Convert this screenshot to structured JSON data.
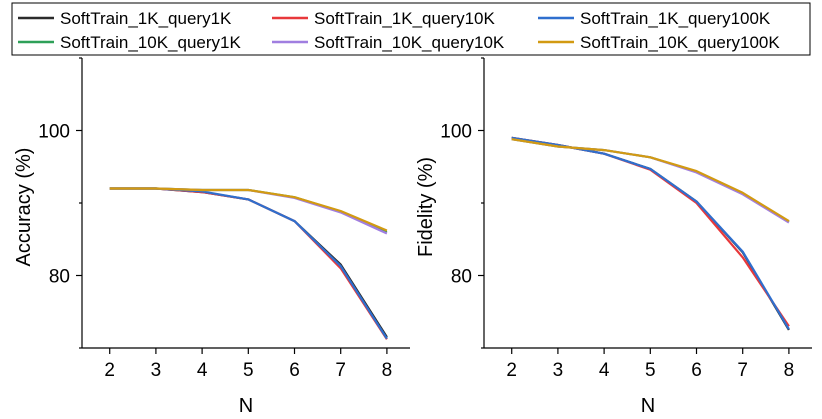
{
  "chart_data": [
    {
      "type": "line",
      "title": "",
      "xlabel": "N",
      "ylabel": "Accuracy (%)",
      "x": [
        2,
        3,
        4,
        5,
        6,
        7,
        8
      ],
      "xlim": [
        1.4,
        8.5
      ],
      "ylim": [
        70,
        110
      ],
      "xticks": [
        "2",
        "3",
        "4",
        "5",
        "6",
        "7",
        "8"
      ],
      "yticks": [
        "80",
        "100"
      ],
      "grid": false,
      "series": [
        {
          "name": "SoftTrain_1K_query1K",
          "values": [
            92.0,
            92.0,
            91.5,
            90.5,
            87.5,
            81.5,
            71.5
          ]
        },
        {
          "name": "SoftTrain_1K_query10K",
          "values": [
            92.0,
            92.0,
            91.5,
            90.5,
            87.5,
            81.0,
            71.2
          ]
        },
        {
          "name": "SoftTrain_1K_query100K",
          "values": [
            92.0,
            92.0,
            91.6,
            90.5,
            87.5,
            81.3,
            71.3
          ]
        },
        {
          "name": "SoftTrain_10K_query1K",
          "values": [
            92.0,
            92.0,
            91.8,
            91.8,
            90.8,
            88.8,
            86.0
          ]
        },
        {
          "name": "SoftTrain_10K_query10K",
          "values": [
            92.0,
            92.0,
            91.8,
            91.8,
            90.7,
            88.7,
            85.8
          ]
        },
        {
          "name": "SoftTrain_10K_query100K",
          "values": [
            92.0,
            92.0,
            91.8,
            91.8,
            90.8,
            88.9,
            86.2
          ]
        }
      ]
    },
    {
      "type": "line",
      "title": "",
      "xlabel": "N",
      "ylabel": "Fidelity (%)",
      "x": [
        2,
        3,
        4,
        5,
        6,
        7,
        8
      ],
      "xlim": [
        1.4,
        8.5
      ],
      "ylim": [
        70,
        110
      ],
      "xticks": [
        "2",
        "3",
        "4",
        "5",
        "6",
        "7",
        "8"
      ],
      "yticks": [
        "80",
        "100"
      ],
      "grid": false,
      "series": [
        {
          "name": "SoftTrain_1K_query1K",
          "values": [
            99.0,
            98.0,
            96.8,
            94.7,
            90.2,
            83.2,
            72.5
          ]
        },
        {
          "name": "SoftTrain_1K_query10K",
          "values": [
            99.0,
            98.0,
            96.8,
            94.6,
            90.0,
            82.5,
            73.0
          ]
        },
        {
          "name": "SoftTrain_1K_query100K",
          "values": [
            99.0,
            98.0,
            96.8,
            94.7,
            90.2,
            83.3,
            72.6
          ]
        },
        {
          "name": "SoftTrain_10K_query1K",
          "values": [
            98.8,
            97.8,
            97.3,
            96.3,
            94.3,
            91.3,
            87.4
          ]
        },
        {
          "name": "SoftTrain_10K_query10K",
          "values": [
            98.8,
            97.8,
            97.3,
            96.3,
            94.2,
            91.2,
            87.3
          ]
        },
        {
          "name": "SoftTrain_10K_query100K",
          "values": [
            98.8,
            97.8,
            97.3,
            96.3,
            94.4,
            91.4,
            87.5
          ]
        }
      ]
    }
  ],
  "legend": {
    "placement": "top",
    "items": [
      {
        "label": "SoftTrain_1K_query1K",
        "color": "#2b2b2b"
      },
      {
        "label": "SoftTrain_1K_query10K",
        "color": "#e8383b"
      },
      {
        "label": "SoftTrain_1K_query100K",
        "color": "#2f6fce"
      },
      {
        "label": "SoftTrain_10K_query1K",
        "color": "#2ea058"
      },
      {
        "label": "SoftTrain_10K_query10K",
        "color": "#a07ee0"
      },
      {
        "label": "SoftTrain_10K_query100K",
        "color": "#d29a12"
      }
    ]
  }
}
